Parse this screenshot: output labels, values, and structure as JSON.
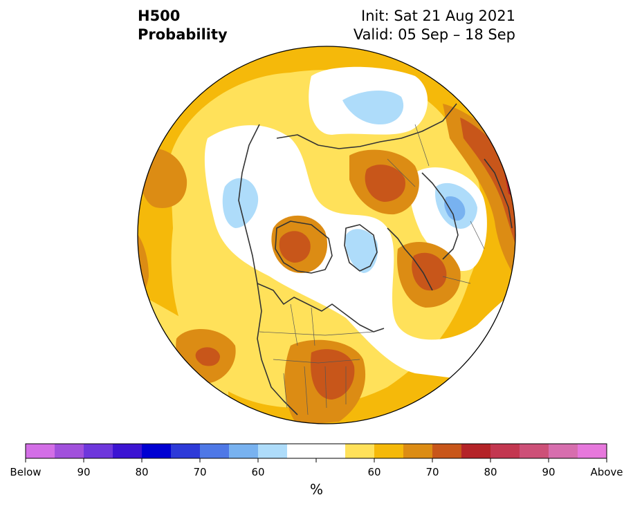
{
  "header": {
    "title_line1": "H500",
    "title_line2": "Probability",
    "init": "Init: Sat 21 Aug 2021",
    "valid": "Valid: 05 Sep – 18 Sep"
  },
  "colorbar": {
    "unit": "%",
    "colors": [
      "#d36ee6",
      "#a150dc",
      "#6e37dc",
      "#3c14d2",
      "#0000d2",
      "#2d3ad8",
      "#4e78e6",
      "#78b2f0",
      "#aedcfa",
      "#ffffff",
      "#ffffff",
      "#ffe15a",
      "#f5b90a",
      "#dc8c14",
      "#c8561a",
      "#b42328",
      "#c33750",
      "#cd5078",
      "#d76eae",
      "#e678dc"
    ],
    "tick_labels": [
      {
        "index": 0,
        "label": "Below"
      },
      {
        "index": 2,
        "label": "90"
      },
      {
        "index": 4,
        "label": "80"
      },
      {
        "index": 6,
        "label": "70"
      },
      {
        "index": 8,
        "label": "60"
      },
      {
        "index": 10,
        "label": ""
      },
      {
        "index": 12,
        "label": "60"
      },
      {
        "index": 14,
        "label": "70"
      },
      {
        "index": 16,
        "label": "80"
      },
      {
        "index": 18,
        "label": "90"
      },
      {
        "index": 20,
        "label": "Above"
      }
    ]
  }
}
